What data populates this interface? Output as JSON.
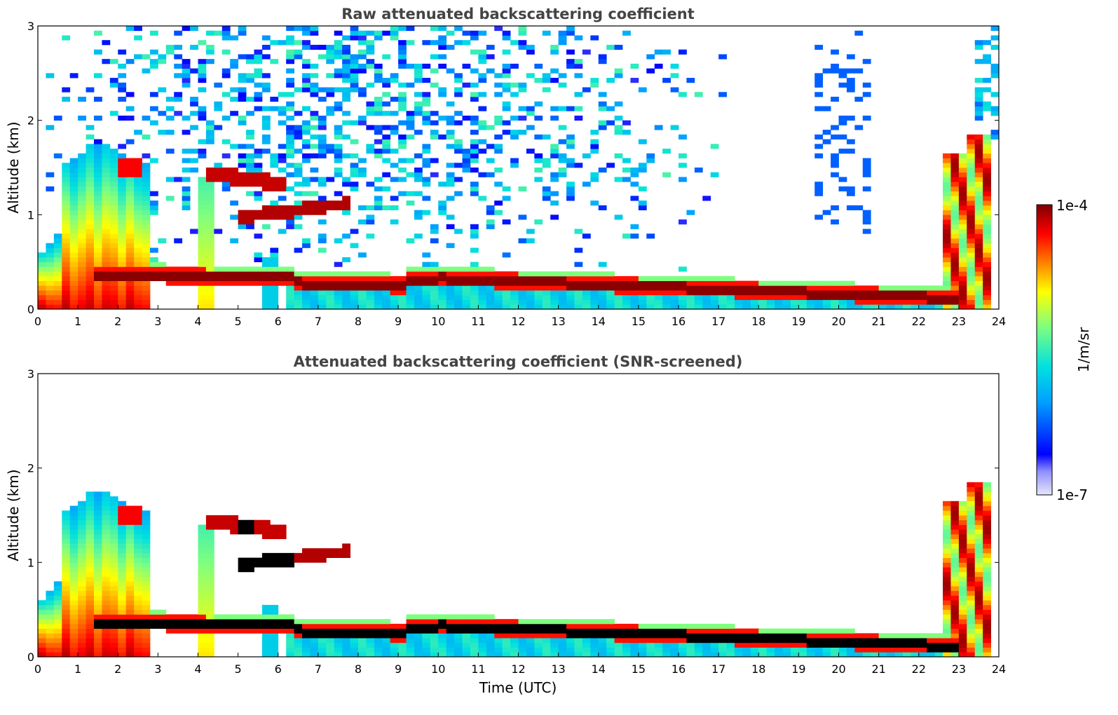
{
  "figure": {
    "colors": {
      "background": "#ffffff",
      "axes_frame": "#000000",
      "title_text": "#444444",
      "clipped_high": "#000000",
      "colormap": [
        "#e6e6fa",
        "#0000ff",
        "#00a0ff",
        "#00e0e0",
        "#7fff7f",
        "#ffff00",
        "#ff8000",
        "#ff0000",
        "#800000"
      ]
    }
  },
  "chart_data": [
    {
      "type": "heatmap",
      "title": "Raw attenuated backscattering coefficient",
      "xlabel": "",
      "ylabel": "Altitude (km)",
      "xlim": [
        0,
        24
      ],
      "ylim": [
        0,
        3
      ],
      "x_ticks": [
        "0",
        "1",
        "2",
        "3",
        "4",
        "5",
        "6",
        "7",
        "8",
        "9",
        "10",
        "11",
        "12",
        "13",
        "14",
        "15",
        "16",
        "17",
        "18",
        "19",
        "20",
        "21",
        "22",
        "23",
        "24"
      ],
      "y_ticks": [
        "0",
        "1",
        "2",
        "3"
      ],
      "grid": false,
      "color_scale": "log",
      "features": [
        {
          "feature": "boundary layer aerosol / clouds",
          "x_start": 0.0,
          "x_end": 2.7,
          "y_top_km": 1.7,
          "intensity": "high"
        },
        {
          "feature": "elevated cloud layer",
          "x_start": 4.1,
          "x_end": 6.3,
          "y_center_km": 1.35,
          "intensity": "very high"
        },
        {
          "feature": "elevated cloud layer",
          "x_start": 5.0,
          "x_end": 7.8,
          "y_center_km": 1.0,
          "intensity": "very high"
        },
        {
          "feature": "low stratocumulus layer",
          "x_start": 1.5,
          "x_end": 23.0,
          "y_center_km_start": 0.4,
          "y_center_km_end": 0.1,
          "intensity": "very high"
        },
        {
          "feature": "late-day deep layer",
          "x_start": 22.6,
          "x_end": 23.8,
          "y_top_km": 1.9,
          "intensity": "high"
        },
        {
          "feature": "background noise",
          "x_start": 0.0,
          "x_end": 17.0,
          "y_center_km": 2.3,
          "intensity": "low"
        }
      ]
    },
    {
      "type": "heatmap",
      "title": "Attenuated backscattering coefficient (SNR-screened)",
      "xlabel": "Time (UTC)",
      "ylabel": "Altitude (km)",
      "xlim": [
        0,
        24
      ],
      "ylim": [
        0,
        3
      ],
      "x_ticks": [
        "0",
        "1",
        "2",
        "3",
        "4",
        "5",
        "6",
        "7",
        "8",
        "9",
        "10",
        "11",
        "12",
        "13",
        "14",
        "15",
        "16",
        "17",
        "18",
        "19",
        "20",
        "21",
        "22",
        "23",
        "24"
      ],
      "y_ticks": [
        "0",
        "1",
        "2",
        "3"
      ],
      "grid": false,
      "color_scale": "log",
      "features": [
        {
          "feature": "boundary layer aerosol / clouds",
          "x_start": 0.0,
          "x_end": 2.7,
          "y_top_km": 1.7,
          "intensity": "high"
        },
        {
          "feature": "elevated cloud layer",
          "x_start": 4.1,
          "x_end": 6.3,
          "y_center_km": 1.35,
          "intensity": "very high"
        },
        {
          "feature": "elevated cloud layer",
          "x_start": 5.0,
          "x_end": 7.8,
          "y_center_km": 1.0,
          "intensity": "very high"
        },
        {
          "feature": "low stratocumulus layer",
          "x_start": 1.5,
          "x_end": 23.0,
          "y_center_km_start": 0.4,
          "y_center_km_end": 0.1,
          "intensity": "saturated"
        },
        {
          "feature": "late-day deep layer",
          "x_start": 22.6,
          "x_end": 23.8,
          "y_top_km": 1.9,
          "intensity": "high"
        }
      ]
    }
  ],
  "colorbar": {
    "label": "1/m/sr",
    "max_label": "1e-4",
    "min_label": "1e-7",
    "scale": "log",
    "range": [
      1e-07,
      0.0001
    ]
  }
}
